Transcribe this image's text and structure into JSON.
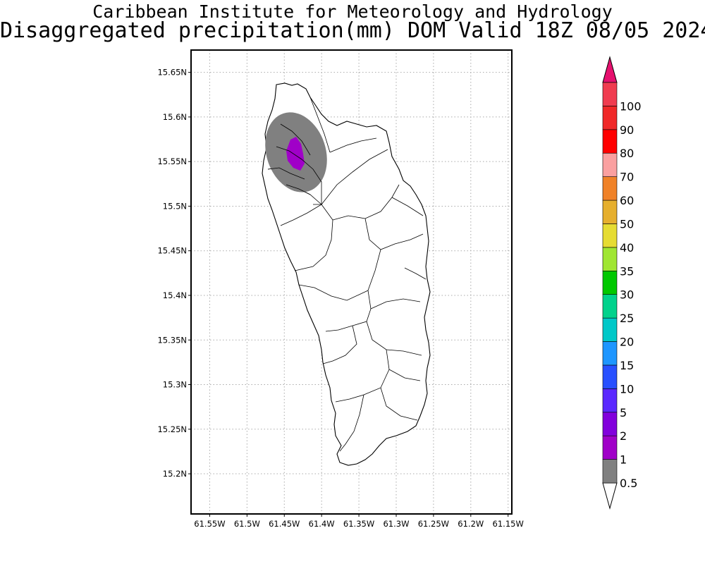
{
  "header": {
    "title_line1": "Caribbean Institute for Meteorology and Hydrology",
    "title_line2": "Disaggregated precipitation(mm) DOM Valid 18Z 08/05 2024"
  },
  "map": {
    "region": "Dominica",
    "lon_range": [
      -61.575,
      -61.145
    ],
    "lat_range": [
      15.155,
      15.675
    ],
    "lon_ticks": [
      {
        "value": -61.55,
        "label": "61.55W"
      },
      {
        "value": -61.5,
        "label": "61.5W"
      },
      {
        "value": -61.45,
        "label": "61.45W"
      },
      {
        "value": -61.4,
        "label": "61.4W"
      },
      {
        "value": -61.35,
        "label": "61.35W"
      },
      {
        "value": -61.3,
        "label": "61.3W"
      },
      {
        "value": -61.25,
        "label": "61.25W"
      },
      {
        "value": -61.2,
        "label": "61.2W"
      },
      {
        "value": -61.15,
        "label": "61.15W"
      }
    ],
    "lat_ticks": [
      {
        "value": 15.2,
        "label": "15.2N"
      },
      {
        "value": 15.25,
        "label": "15.25N"
      },
      {
        "value": 15.3,
        "label": "15.3N"
      },
      {
        "value": 15.35,
        "label": "15.35N"
      },
      {
        "value": 15.4,
        "label": "15.4N"
      },
      {
        "value": 15.45,
        "label": "15.45N"
      },
      {
        "value": 15.5,
        "label": "15.5N"
      },
      {
        "value": 15.55,
        "label": "15.55N"
      },
      {
        "value": 15.6,
        "label": "15.6N"
      },
      {
        "value": 15.65,
        "label": "15.65N"
      }
    ],
    "grid": true,
    "precip_areas": [
      {
        "level_mm": "0.5-1",
        "color": "#808080",
        "center_lon": -61.422,
        "center_lat": 15.558,
        "extent": "north-west Dominica"
      },
      {
        "level_mm": "1-2",
        "color": "#a000c8",
        "center_lon": -61.43,
        "center_lat": 15.556,
        "extent": "north-west Dominica"
      }
    ]
  },
  "colorbar": {
    "levels": [
      {
        "label": "0.5",
        "color": "#808080"
      },
      {
        "label": "1",
        "color": "#a000c8"
      },
      {
        "label": "2",
        "color": "#8200dc"
      },
      {
        "label": "5",
        "color": "#5a28ff"
      },
      {
        "label": "10",
        "color": "#2850ff"
      },
      {
        "label": "15",
        "color": "#1e96ff"
      },
      {
        "label": "20",
        "color": "#00c8c8"
      },
      {
        "label": "25",
        "color": "#00d28c"
      },
      {
        "label": "30",
        "color": "#00c800"
      },
      {
        "label": "35",
        "color": "#a0e632"
      },
      {
        "label": "40",
        "color": "#e6dc32"
      },
      {
        "label": "50",
        "color": "#e6af2d"
      },
      {
        "label": "60",
        "color": "#f08228"
      },
      {
        "label": "70",
        "color": "#faa0a0"
      },
      {
        "label": "80",
        "color": "#ff0000"
      },
      {
        "label": "90",
        "color": "#f02828"
      },
      {
        "label": "100",
        "color": "#f03c50"
      }
    ],
    "over_color": "#e6106e",
    "under_color": "#ffffff"
  }
}
